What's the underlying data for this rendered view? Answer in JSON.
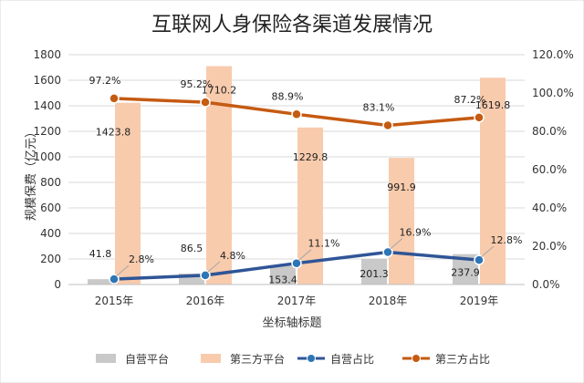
{
  "chart_data": {
    "type": "bar+line",
    "title": "互联网人身保险各渠道发展情况",
    "xlabel": "坐标轴标题",
    "ylabel": "规模保费（亿元）",
    "categories": [
      "2015年",
      "2016年",
      "2017年",
      "2018年",
      "2019年"
    ],
    "y_left_ticks": [
      "0",
      "200",
      "400",
      "600",
      "800",
      "1000",
      "1200",
      "1400",
      "1600",
      "1800"
    ],
    "y_right_ticks": [
      "0.0%",
      "20.0%",
      "40.0%",
      "60.0%",
      "80.0%",
      "100.0%",
      "120.0%"
    ],
    "ylim_left": [
      0,
      1800
    ],
    "ylim_right": [
      0,
      120
    ],
    "grid": true,
    "legend_position": "bottom",
    "series": [
      {
        "name": "自营平台",
        "kind": "bar",
        "axis": "left",
        "color": "#c9c9c9",
        "values": [
          41.8,
          86.5,
          153.4,
          201.3,
          237.9
        ],
        "labels": [
          "41.8",
          "86.5",
          "153.4",
          "201.3",
          "237.9"
        ]
      },
      {
        "name": "第三方平台",
        "kind": "bar",
        "axis": "left",
        "color": "#f8cbad",
        "values": [
          1423.8,
          1710.2,
          1229.8,
          991.9,
          1619.8
        ],
        "labels": [
          "1423.8",
          "1710.2",
          "1229.8",
          "991.9",
          "1619.8"
        ]
      },
      {
        "name": "自营占比",
        "kind": "line",
        "axis": "right",
        "color": "#2f5597",
        "marker_color": "#2e75b6",
        "values": [
          2.8,
          4.8,
          11.1,
          16.9,
          12.8
        ],
        "labels": [
          "2.8%",
          "4.8%",
          "11.1%",
          "16.9%",
          "12.8%"
        ]
      },
      {
        "name": "第三方占比",
        "kind": "line",
        "axis": "right",
        "color": "#c55a11",
        "marker_color": "#c55a11",
        "values": [
          97.2,
          95.2,
          88.9,
          83.1,
          87.2
        ],
        "labels": [
          "97.2%",
          "95.2%",
          "88.9%",
          "83.1%",
          "87.2%"
        ]
      }
    ]
  }
}
